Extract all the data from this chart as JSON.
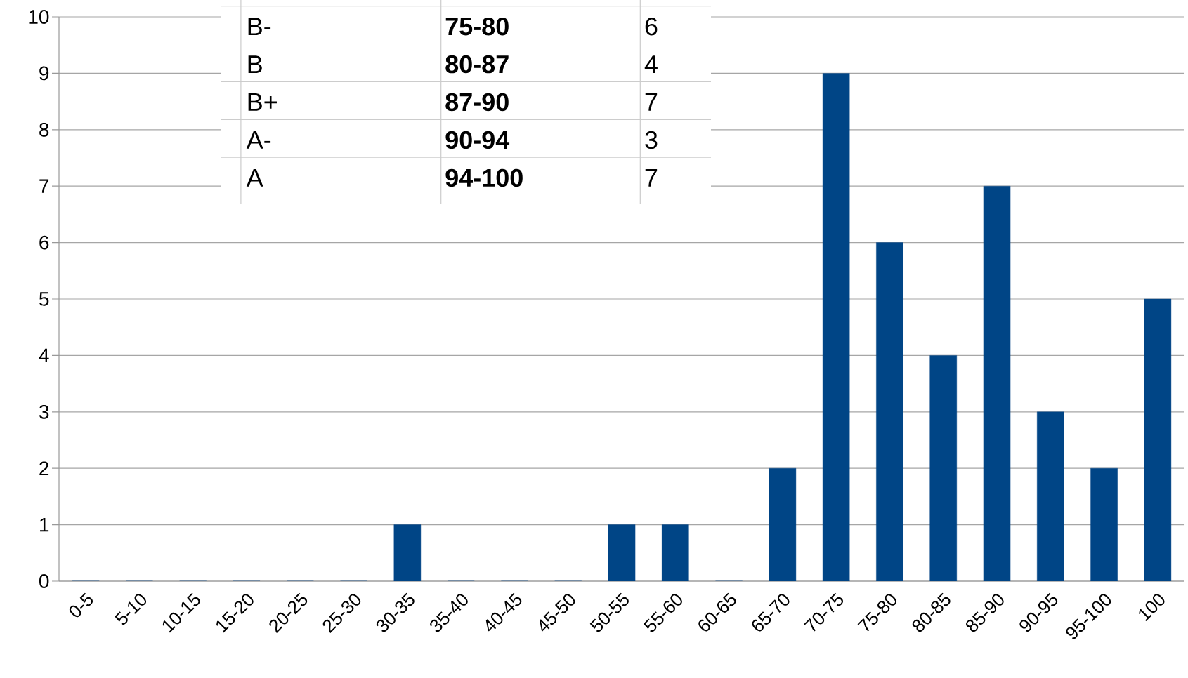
{
  "chart_data": {
    "type": "bar",
    "categories": [
      "0-5",
      "5-10",
      "10-15",
      "15-20",
      "20-25",
      "25-30",
      "30-35",
      "35-40",
      "40-45",
      "45-50",
      "50-55",
      "55-60",
      "60-65",
      "65-70",
      "70-75",
      "75-80",
      "80-85",
      "85-90",
      "90-95",
      "95-100",
      "100"
    ],
    "values": [
      0,
      0,
      0,
      0,
      0,
      0,
      1,
      0,
      0,
      0,
      1,
      1,
      0,
      2,
      9,
      6,
      4,
      7,
      3,
      2,
      5
    ],
    "color": "#004586",
    "ylim": [
      0,
      10
    ],
    "yticks": [
      0,
      1,
      2,
      3,
      4,
      5,
      6,
      7,
      8,
      9,
      10
    ],
    "grid": "y",
    "annotations": [
      "B-",
      "75-80",
      "6",
      "B",
      "80-87",
      "4",
      "B+",
      "87-90",
      "7",
      "A-",
      "90-94",
      "3",
      "A",
      "94-100",
      "7"
    ]
  }
}
